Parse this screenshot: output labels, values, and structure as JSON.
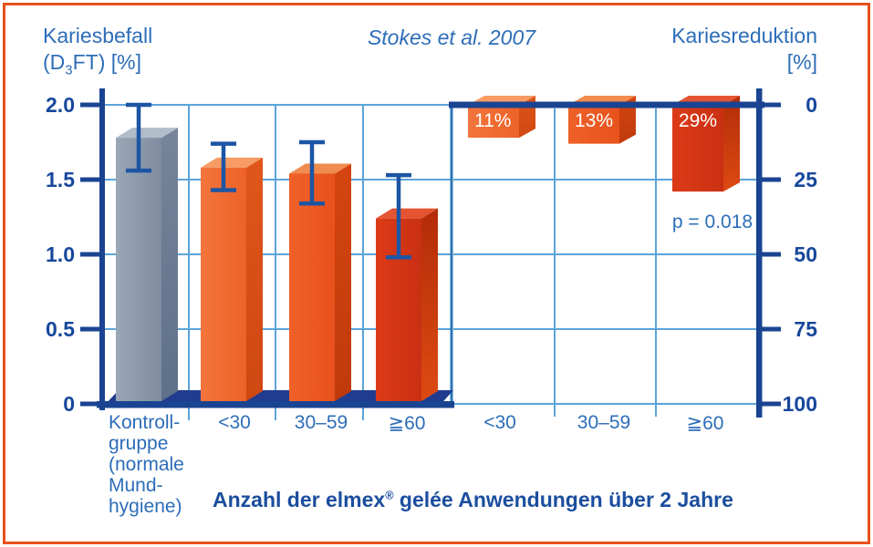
{
  "page": {
    "border_color": "#e8521d",
    "background": "#ffffff"
  },
  "header": {
    "left_axis_title": {
      "line1": "Kariesbefall",
      "line2_pre": "(D",
      "line2_sub": "3",
      "line2_post": "FT) [%]"
    },
    "study_title": "Stokes et al. 2007",
    "right_axis_title": {
      "line1": "Kariesreduktion",
      "line2": "[%]"
    }
  },
  "caption": {
    "pre": "Anzahl der elmex",
    "sup": "®",
    "post": " gelée Anwendungen über 2 Jahre"
  },
  "bottom": {
    "control_lines": [
      "Kontroll-",
      "gruppe",
      "(normale",
      "Mund-",
      "hygiene)"
    ],
    "left_labels": [
      "<30",
      "30–59",
      "≧60"
    ],
    "right_labels": [
      "<30",
      "30–59",
      "≧60"
    ]
  },
  "chart_data": {
    "type": "bar",
    "title": "Stokes et al. 2007",
    "grid": true,
    "left_axis": {
      "title": "Kariesbefall (D3FT) [%]",
      "range": [
        0,
        2.0
      ],
      "ticks": [
        "2.0",
        "1.5",
        "1.0",
        "0.5",
        "0"
      ],
      "tick_values": [
        2.0,
        1.5,
        1.0,
        0.5,
        0
      ]
    },
    "right_axis": {
      "title": "Kariesreduktion [%]",
      "range": [
        0,
        100
      ],
      "inverted": true,
      "ticks": [
        "0",
        "25",
        "50",
        "75",
        "100"
      ],
      "tick_values": [
        0,
        25,
        50,
        75,
        100
      ]
    },
    "categories": [
      "Kontrollgruppe (normale Mundhygiene)",
      "<30",
      "30–59",
      "≧60"
    ],
    "caries_series": {
      "name": "Kariesbefall (D3FT) [%]",
      "values": [
        1.78,
        1.58,
        1.54,
        1.24
      ],
      "ci_low": [
        1.56,
        1.43,
        1.34,
        0.98
      ],
      "ci_high": [
        2.0,
        1.74,
        1.75,
        1.53
      ],
      "bar_colors": [
        "gray",
        "orange1",
        "orange2",
        "red"
      ]
    },
    "reduction_series": {
      "name": "Kariesreduktion [%]",
      "categories": [
        "<30",
        "30–59",
        "≧60"
      ],
      "values": [
        11,
        13,
        29
      ],
      "labels": [
        "11%",
        "13%",
        "29%"
      ],
      "bar_colors": [
        "orange1",
        "orange2",
        "red"
      ],
      "annotation": "p = 0.018"
    }
  },
  "colors": {
    "accent_border": "#e8521d",
    "axis_dark_blue": "#1a4492",
    "floor_navy": "#213c8e",
    "grid_light_blue": "#5ba4da",
    "section_line_blue": "#2e76ba",
    "text_blue": "#2d6db8",
    "tick_text_blue": "#17479c",
    "error_bar_blue": "#1d55a4",
    "bar_label_white": "#ffffff",
    "bars": {
      "gray": {
        "top": "#b2bdca",
        "front": [
          "#9aa7b7",
          "#7e8c9f"
        ],
        "side": [
          "#76859b",
          "#5e7089"
        ]
      },
      "orange1": {
        "top": "#f69c64",
        "front": [
          "#f3753d",
          "#ed6227"
        ],
        "side": [
          "#e0561a",
          "#cf4712"
        ]
      },
      "orange2": {
        "top": "#f28b50",
        "front": [
          "#ef6128",
          "#e8521c"
        ],
        "side": [
          "#d44511",
          "#c03a0c"
        ]
      },
      "red": {
        "top": "#e45432",
        "front": [
          "#dc3b17",
          "#c93012"
        ],
        "side": [
          "#b32c08",
          "#dd4a13"
        ]
      }
    }
  }
}
